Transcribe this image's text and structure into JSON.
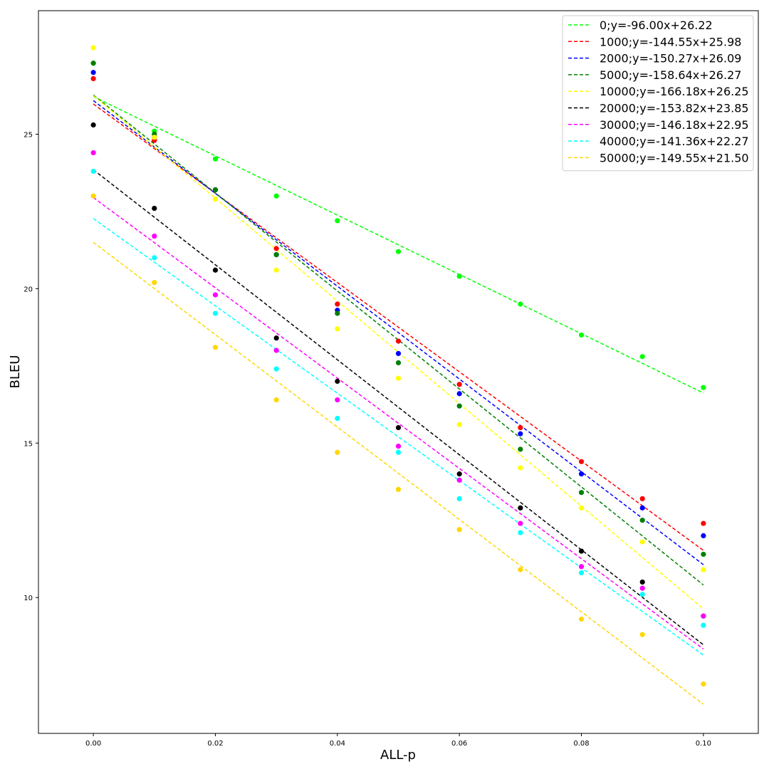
{
  "chart_data": {
    "type": "scatter",
    "title": "",
    "xlabel": "ALL-p",
    "ylabel": "BLEU",
    "xlim": [
      -0.009,
      0.109
    ],
    "ylim": [
      5.6,
      29.0
    ],
    "xticks": [
      0.0,
      0.02,
      0.04,
      0.06,
      0.08,
      0.1
    ],
    "xtick_labels": [
      "0.00",
      "0.02",
      "0.04",
      "0.06",
      "0.08",
      "0.10"
    ],
    "yticks": [
      10,
      15,
      20,
      25
    ],
    "ytick_labels": [
      "10",
      "15",
      "20",
      "25"
    ],
    "grid": false,
    "legend_position": "top-right",
    "x": [
      0.0,
      0.01,
      0.02,
      0.03,
      0.04,
      0.05,
      0.06,
      0.07,
      0.08,
      0.09,
      0.1
    ],
    "series": [
      {
        "name": "0;y=-96.00x+26.22",
        "color": "#00ff00",
        "slope": -96.0,
        "intercept": 26.22,
        "values": [
          27.3,
          25.1,
          24.2,
          23.0,
          22.2,
          21.2,
          20.4,
          19.5,
          18.5,
          17.8,
          16.8
        ]
      },
      {
        "name": "1000;y=-144.55x+25.98",
        "color": "#ff0000",
        "slope": -144.55,
        "intercept": 25.98,
        "values": [
          26.8,
          24.8,
          23.2,
          21.3,
          19.5,
          18.3,
          16.9,
          15.5,
          14.4,
          13.2,
          12.4
        ]
      },
      {
        "name": "2000;y=-150.27x+26.09",
        "color": "#0000ff",
        "slope": -150.27,
        "intercept": 26.09,
        "values": [
          27.0,
          24.9,
          23.2,
          21.1,
          19.3,
          17.9,
          16.6,
          15.3,
          14.0,
          12.9,
          12.0
        ]
      },
      {
        "name": "5000;y=-158.64x+26.27",
        "color": "#008000",
        "slope": -158.64,
        "intercept": 26.27,
        "values": [
          27.3,
          25.0,
          23.2,
          21.1,
          19.2,
          17.6,
          16.2,
          14.8,
          13.4,
          12.5,
          11.4
        ]
      },
      {
        "name": "10000;y=-166.18x+26.25",
        "color": "#ffff00",
        "slope": -166.18,
        "intercept": 26.25,
        "values": [
          27.8,
          24.9,
          22.9,
          20.6,
          18.7,
          17.1,
          15.6,
          14.2,
          12.9,
          11.8,
          10.9
        ]
      },
      {
        "name": "20000;y=-153.82x+23.85",
        "color": "#000000",
        "slope": -153.82,
        "intercept": 23.85,
        "values": [
          25.3,
          22.6,
          20.6,
          18.4,
          17.0,
          15.5,
          14.0,
          12.9,
          11.5,
          10.5,
          9.4
        ]
      },
      {
        "name": "30000;y=-146.18x+22.95",
        "color": "#ff00ff",
        "slope": -146.18,
        "intercept": 22.95,
        "values": [
          24.4,
          21.7,
          19.8,
          18.0,
          16.4,
          14.9,
          13.8,
          12.4,
          11.0,
          10.3,
          9.4
        ]
      },
      {
        "name": "40000;y=-141.36x+22.27",
        "color": "#00ffff",
        "slope": -141.36,
        "intercept": 22.27,
        "values": [
          23.8,
          21.0,
          19.2,
          17.4,
          15.8,
          14.7,
          13.2,
          12.1,
          10.8,
          10.1,
          9.1
        ]
      },
      {
        "name": "50000;y=-149.55x+21.50",
        "color": "#ffd700",
        "slope": -149.55,
        "intercept": 21.5,
        "values": [
          23.0,
          20.2,
          18.1,
          16.4,
          14.7,
          13.5,
          12.2,
          10.9,
          9.3,
          8.8,
          7.2
        ]
      }
    ]
  }
}
